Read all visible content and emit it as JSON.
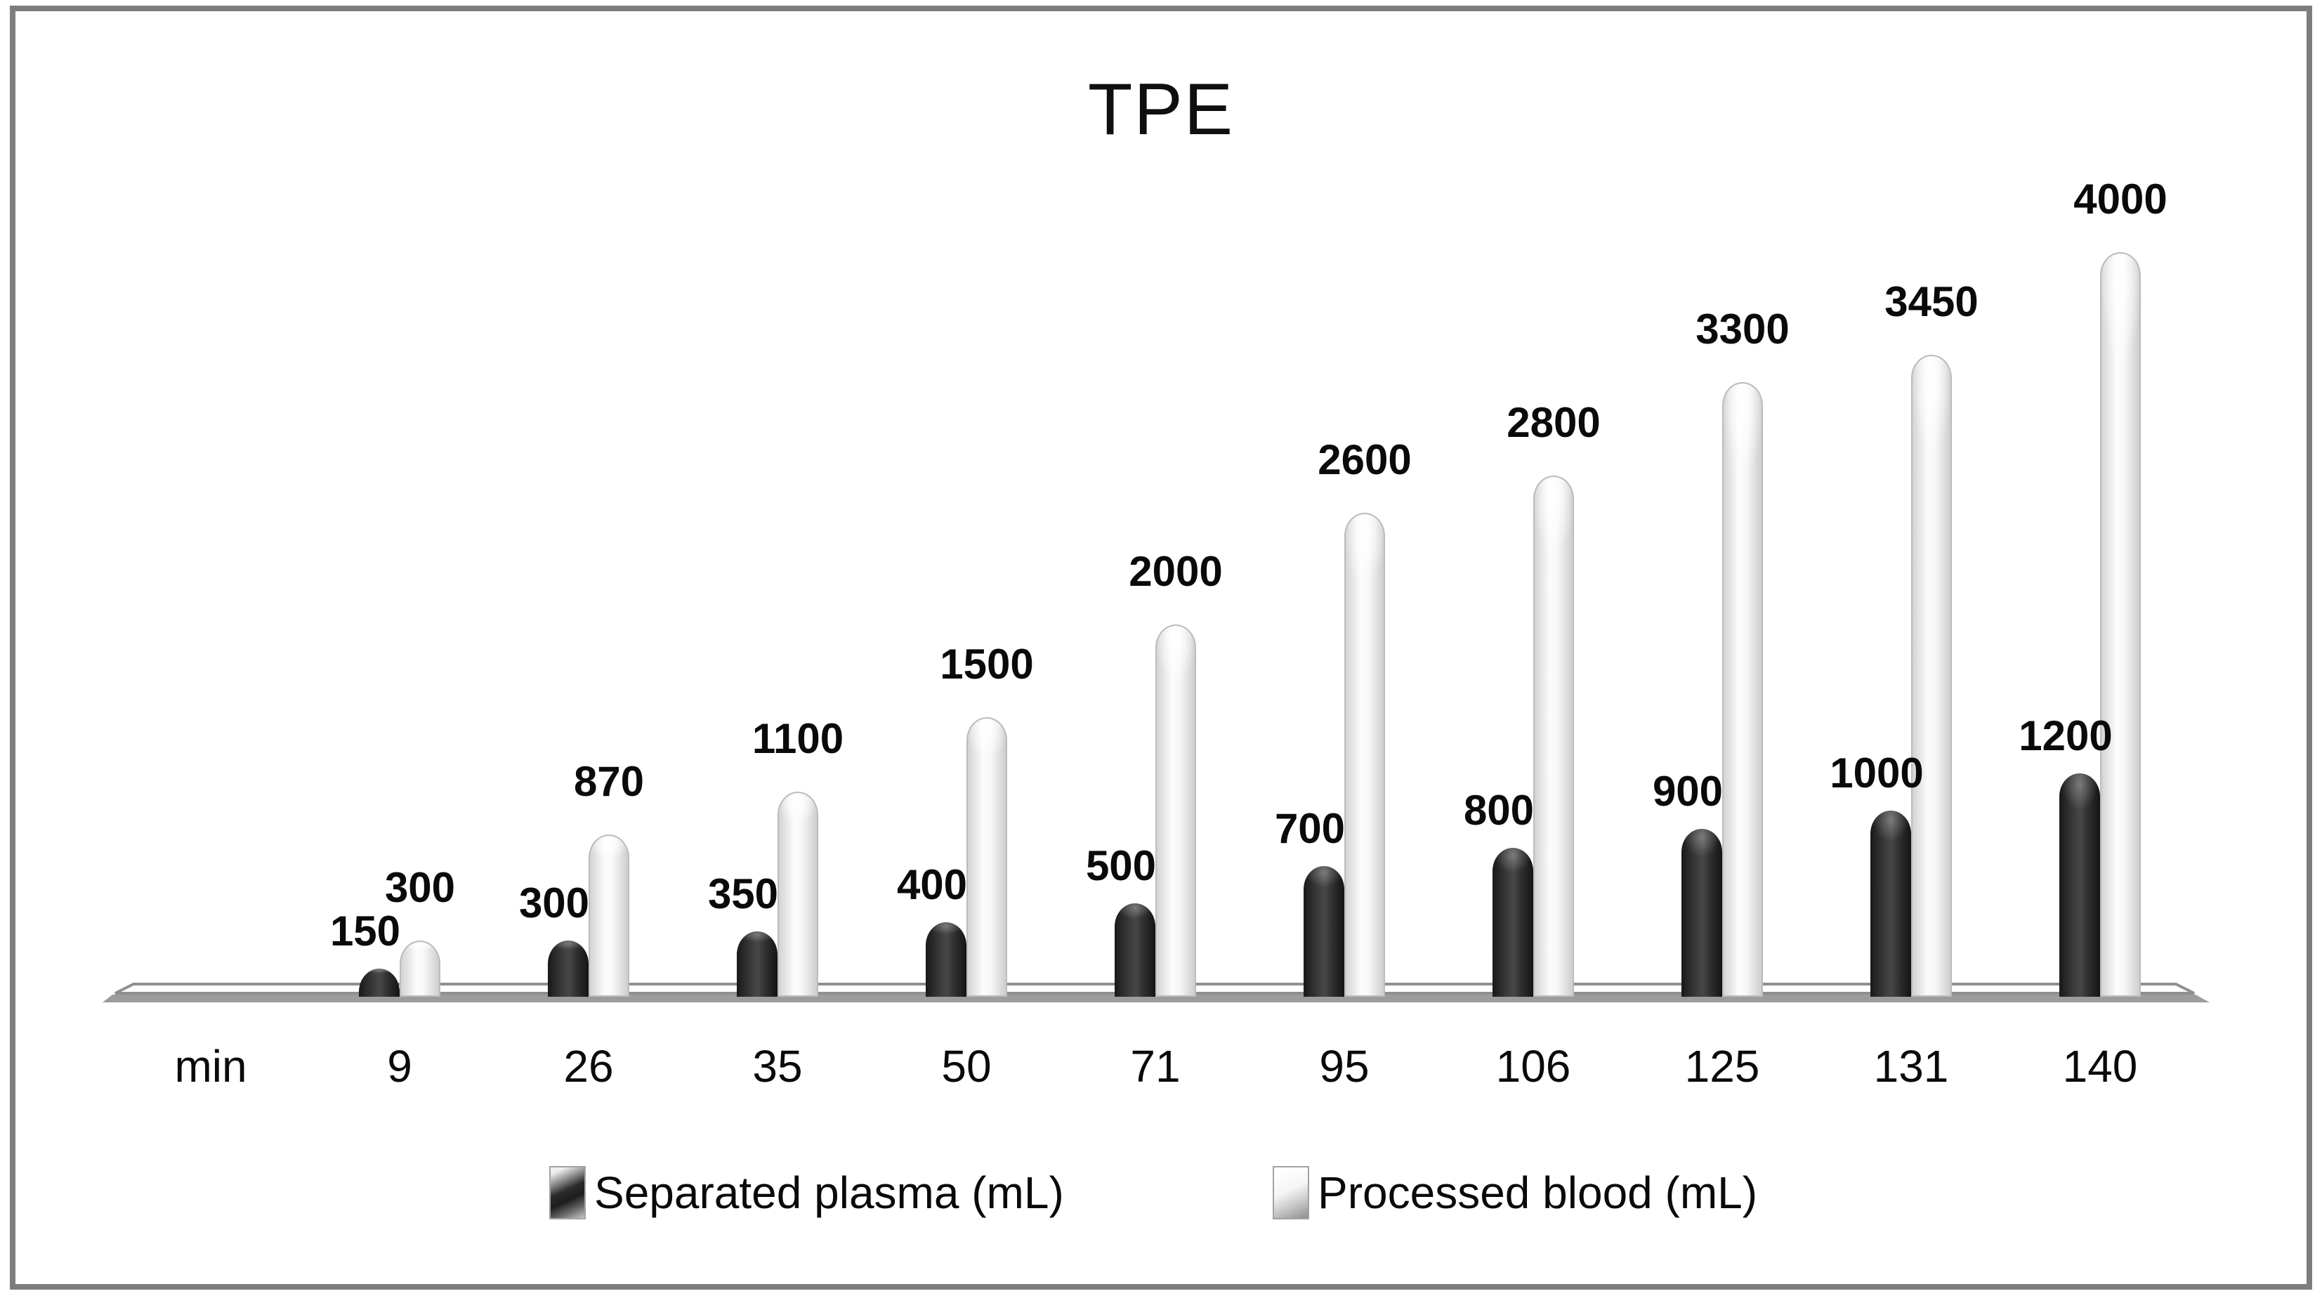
{
  "chart_data": {
    "type": "bar",
    "title": "TPE",
    "axis_unit_label": "min",
    "categories": [
      9,
      26,
      35,
      50,
      71,
      95,
      106,
      125,
      131,
      140
    ],
    "series": [
      {
        "name": "Separated plasma (mL)",
        "values": [
          150,
          300,
          350,
          400,
          500,
          700,
          800,
          900,
          1000,
          1200
        ],
        "color": "#303030"
      },
      {
        "name": "Processed blood (mL)",
        "values": [
          300,
          870,
          1100,
          1500,
          2000,
          2600,
          2800,
          3300,
          3450,
          4000
        ],
        "color": "#f5f5f5"
      }
    ],
    "data_labels": true,
    "legend_position": "bottom",
    "xlabel": "",
    "ylabel": "",
    "ylim": [
      0,
      4000
    ],
    "grid": false,
    "style": "3d-cylinder",
    "frame_color": "#7d7d7d"
  }
}
